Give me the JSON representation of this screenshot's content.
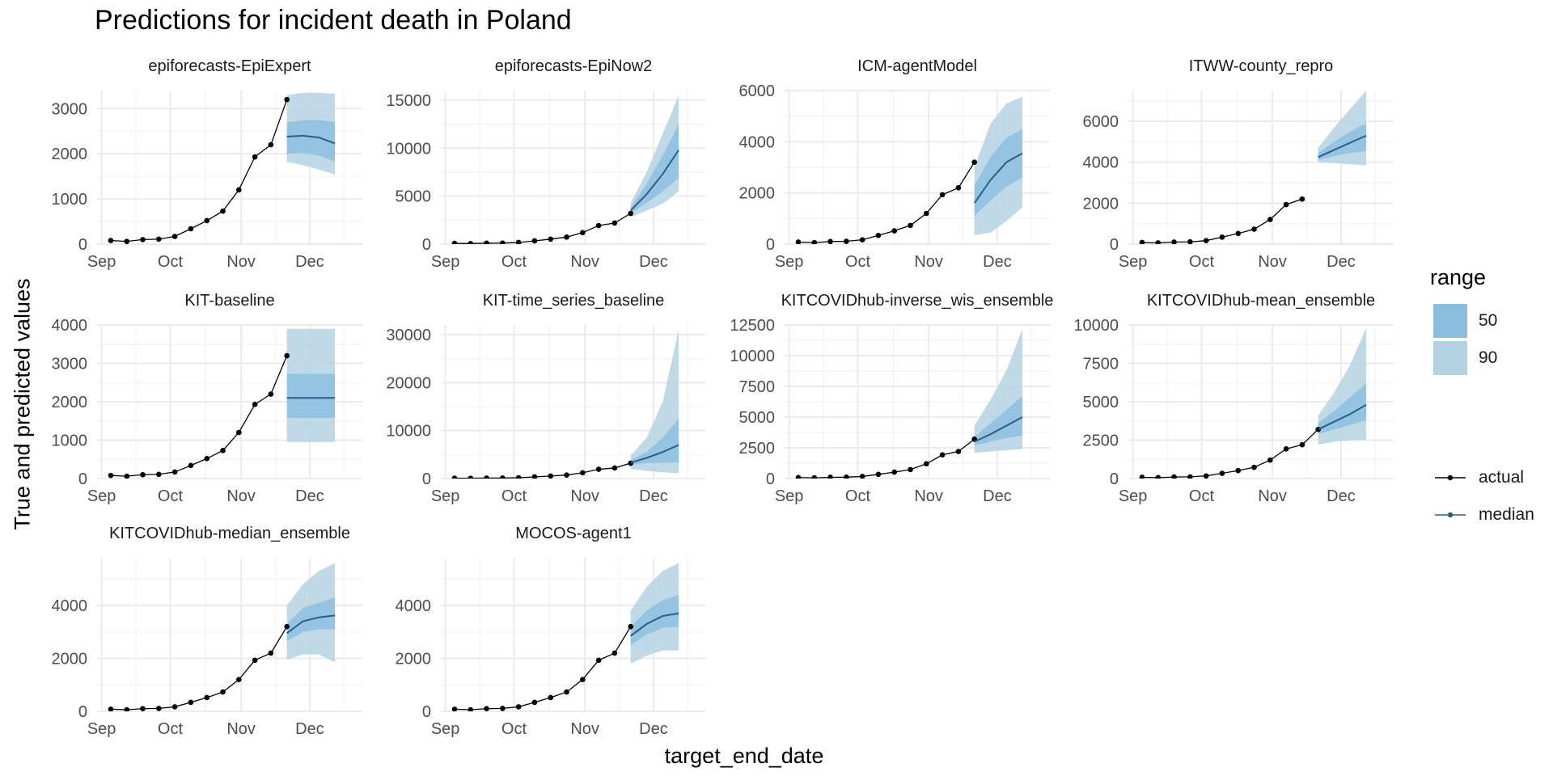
{
  "title": "Predictions for incident death in Poland",
  "xlabel": "target_end_date",
  "ylabel": "True and predicted values",
  "colors": {
    "actual": "#000000",
    "median": "#2c5d87",
    "range_50": "#8cbfdf",
    "range_90": "#b4d2e3",
    "grid_major": "#ebebeb",
    "grid_minor": "#f4f4f4",
    "tick_text": "#4d4d4d"
  },
  "legend": {
    "title": "range",
    "ranges": [
      "50",
      "90"
    ],
    "lines": [
      "actual",
      "median"
    ]
  },
  "chart_data": {
    "type": "line",
    "facet": "model",
    "x_ticks": [
      "Sep",
      "Oct",
      "Nov",
      "Dec"
    ],
    "actual": {
      "x": [
        "2020-09-05",
        "2020-09-12",
        "2020-09-19",
        "2020-09-26",
        "2020-10-03",
        "2020-10-10",
        "2020-10-17",
        "2020-10-24",
        "2020-10-31",
        "2020-11-07",
        "2020-11-14",
        "2020-11-21",
        "2020-11-28"
      ],
      "y": [
        80,
        60,
        100,
        110,
        170,
        340,
        520,
        730,
        1200,
        1930,
        2200,
        3200,
        3200
      ]
    },
    "panels": [
      {
        "name": "epiforecasts-EpiExpert",
        "ylim": [
          0,
          3400
        ],
        "yticks": [
          0,
          1000,
          2000,
          3000
        ],
        "ytick_labels": [
          "0",
          "1000",
          "2000",
          "3000"
        ],
        "actual_n": 12,
        "forecast_x": [
          "2020-11-21",
          "2020-11-28",
          "2020-12-05",
          "2020-12-12"
        ],
        "median": [
          2380,
          2400,
          2360,
          2230
        ],
        "q25": [
          2000,
          2020,
          1960,
          1830
        ],
        "q75": [
          2700,
          2740,
          2750,
          2700
        ],
        "q05": [
          1820,
          1750,
          1650,
          1540
        ],
        "q95": [
          3300,
          3350,
          3350,
          3330
        ]
      },
      {
        "name": "epiforecasts-EpiNow2",
        "ylim": [
          0,
          16000
        ],
        "yticks": [
          0,
          5000,
          10000,
          15000
        ],
        "ytick_labels": [
          "0",
          "5000",
          "10000",
          "15000"
        ],
        "actual_n": 12,
        "forecast_x": [
          "2020-11-21",
          "2020-11-28",
          "2020-12-05",
          "2020-12-12"
        ],
        "median": [
          3500,
          5200,
          7300,
          9800
        ],
        "q25": [
          3200,
          4300,
          5500,
          6900
        ],
        "q75": [
          3800,
          6300,
          9200,
          12500
        ],
        "q05": [
          2800,
          3500,
          4200,
          5500
        ],
        "q95": [
          4300,
          7500,
          11500,
          15500
        ]
      },
      {
        "name": "ICM-agentModel",
        "ylim": [
          0,
          6000
        ],
        "yticks": [
          0,
          2000,
          4000,
          6000
        ],
        "ytick_labels": [
          "0",
          "2000",
          "4000",
          "6000"
        ],
        "actual_n": 12,
        "forecast_x": [
          "2020-11-21",
          "2020-11-28",
          "2020-12-05",
          "2020-12-12"
        ],
        "median": [
          1600,
          2500,
          3200,
          3550
        ],
        "q25": [
          1100,
          1700,
          2250,
          2600
        ],
        "q75": [
          2300,
          3400,
          4150,
          4500
        ],
        "q05": [
          350,
          450,
          900,
          1450
        ],
        "q95": [
          3000,
          4700,
          5500,
          5750
        ]
      },
      {
        "name": "ITWW-county_repro",
        "ylim": [
          0,
          7500
        ],
        "yticks": [
          0,
          2000,
          4000,
          6000
        ],
        "ytick_labels": [
          "0",
          "2000",
          "4000",
          "6000"
        ],
        "actual_n": 11,
        "forecast_x": [
          "2020-11-21",
          "2020-11-28",
          "2020-12-05",
          "2020-12-12"
        ],
        "median": [
          4250,
          4600,
          4950,
          5300
        ],
        "q25": [
          4100,
          4300,
          4450,
          4550
        ],
        "q75": [
          4450,
          5000,
          5500,
          5900
        ],
        "q05": [
          4000,
          3950,
          3900,
          3850
        ],
        "q95": [
          4700,
          5700,
          6600,
          7500
        ]
      },
      {
        "name": "KIT-baseline",
        "ylim": [
          0,
          4000
        ],
        "yticks": [
          0,
          1000,
          2000,
          3000,
          4000
        ],
        "ytick_labels": [
          "0",
          "1000",
          "2000",
          "3000",
          "4000"
        ],
        "actual_n": 12,
        "forecast_x": [
          "2020-11-21",
          "2020-11-28",
          "2020-12-05",
          "2020-12-12"
        ],
        "median": [
          2100,
          2100,
          2100,
          2100
        ],
        "q25": [
          1580,
          1580,
          1580,
          1580
        ],
        "q75": [
          2730,
          2730,
          2730,
          2730
        ],
        "q05": [
          950,
          950,
          950,
          950
        ],
        "q95": [
          3900,
          3900,
          3900,
          3900
        ]
      },
      {
        "name": "KIT-time_series_baseline",
        "ylim": [
          0,
          32000
        ],
        "yticks": [
          0,
          10000,
          20000,
          30000
        ],
        "ytick_labels": [
          "0",
          "10000",
          "20000",
          "30000"
        ],
        "actual_n": 12,
        "forecast_x": [
          "2020-11-21",
          "2020-11-28",
          "2020-12-05",
          "2020-12-12"
        ],
        "median": [
          3300,
          4300,
          5500,
          7000
        ],
        "q25": [
          2900,
          3200,
          3300,
          3400
        ],
        "q75": [
          3800,
          5500,
          8500,
          12500
        ],
        "q05": [
          2000,
          1600,
          1300,
          1100
        ],
        "q95": [
          4800,
          8500,
          16000,
          31000
        ]
      },
      {
        "name": "KITCOVIDhub-inverse_wis_ensemble",
        "ylim": [
          0,
          12500
        ],
        "yticks": [
          0,
          2500,
          5000,
          7500,
          10000,
          12500
        ],
        "ytick_labels": [
          "0",
          "2500",
          "5000",
          "7500",
          "10000",
          "12500"
        ],
        "actual_n": 12,
        "forecast_x": [
          "2020-11-21",
          "2020-11-28",
          "2020-12-05",
          "2020-12-12"
        ],
        "median": [
          3000,
          3600,
          4300,
          5000
        ],
        "q25": [
          2700,
          3000,
          3300,
          3500
        ],
        "q75": [
          3400,
          4500,
          5600,
          6700
        ],
        "q05": [
          2100,
          2200,
          2300,
          2400
        ],
        "q95": [
          4300,
          6400,
          8800,
          12200
        ]
      },
      {
        "name": "KITCOVIDhub-mean_ensemble",
        "ylim": [
          0,
          10000
        ],
        "yticks": [
          0,
          2500,
          5000,
          7500,
          10000
        ],
        "ytick_labels": [
          "0",
          "2500",
          "5000",
          "7500",
          "10000"
        ],
        "actual_n": 12,
        "forecast_x": [
          "2020-11-21",
          "2020-11-28",
          "2020-12-05",
          "2020-12-12"
        ],
        "median": [
          3200,
          3700,
          4200,
          4800
        ],
        "q25": [
          2900,
          3200,
          3500,
          3800
        ],
        "q75": [
          3600,
          4400,
          5300,
          6200
        ],
        "q05": [
          2200,
          2400,
          2500,
          2500
        ],
        "q95": [
          4100,
          5600,
          7400,
          9800
        ]
      },
      {
        "name": "KITCOVIDhub-median_ensemble",
        "ylim": [
          0,
          5800
        ],
        "yticks": [
          0,
          2000,
          4000
        ],
        "ytick_labels": [
          "0",
          "2000",
          "4000"
        ],
        "actual_n": 12,
        "forecast_x": [
          "2020-11-21",
          "2020-11-28",
          "2020-12-05",
          "2020-12-12"
        ],
        "median": [
          2950,
          3400,
          3550,
          3620
        ],
        "q25": [
          2650,
          3000,
          3100,
          3100
        ],
        "q75": [
          3300,
          3900,
          4100,
          4300
        ],
        "q05": [
          1950,
          2150,
          2150,
          1850
        ],
        "q95": [
          4000,
          4800,
          5300,
          5600
        ]
      },
      {
        "name": "MOCOS-agent1",
        "ylim": [
          0,
          5800
        ],
        "yticks": [
          0,
          2000,
          4000
        ],
        "ytick_labels": [
          "0",
          "2000",
          "4000"
        ],
        "actual_n": 12,
        "forecast_x": [
          "2020-11-21",
          "2020-11-28",
          "2020-12-05",
          "2020-12-12"
        ],
        "median": [
          2850,
          3300,
          3600,
          3700
        ],
        "q25": [
          2500,
          2900,
          3150,
          3200
        ],
        "q75": [
          3200,
          3800,
          4200,
          4400
        ],
        "q05": [
          1800,
          2100,
          2300,
          2300
        ],
        "q95": [
          3800,
          4700,
          5300,
          5600
        ]
      }
    ]
  }
}
